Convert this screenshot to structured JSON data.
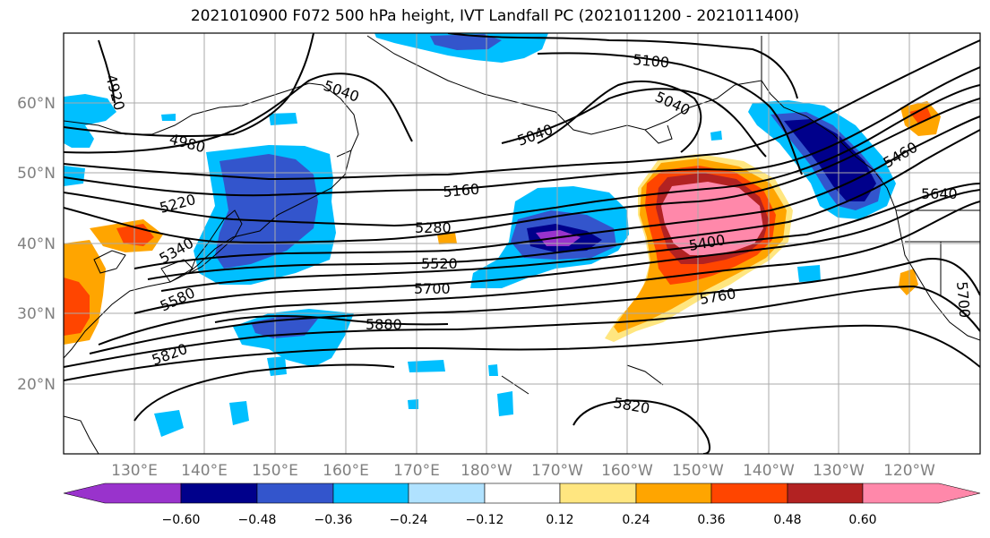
{
  "title": "2021010900 F072 500 hPa height, IVT Landfall PC (2021011200 - 2021011400)",
  "map": {
    "lon_range": [
      120,
      250
    ],
    "lat_range": [
      10,
      70
    ],
    "lon_ticks": [
      "130°E",
      "140°E",
      "150°E",
      "160°E",
      "170°E",
      "180°W",
      "170°W",
      "160°W",
      "150°W",
      "140°W",
      "130°W",
      "120°W"
    ],
    "lat_ticks": [
      "60°N",
      "50°N",
      "40°N",
      "30°N",
      "20°N"
    ],
    "gridlines": true
  },
  "height_contours": {
    "field": "500 hPa height",
    "labels": [
      "4920",
      "4980",
      "5040",
      "5040",
      "5100",
      "5040",
      "5160",
      "5220",
      "5280",
      "5340",
      "5400",
      "5460",
      "5520",
      "5580",
      "5640",
      "5700",
      "5700",
      "5760",
      "5820",
      "5820",
      "5880"
    ]
  },
  "ivt_pc_fill": {
    "colors": {
      "lt_-0.60": "#9933cc",
      "-0.60_-0.48": "#00008b",
      "-0.48_-0.36": "#3355cc",
      "-0.36_-0.24": "#00bfff",
      "-0.24_-0.12": "#b0e2ff",
      "-0.12_0.12": "#ffffff",
      "0.12_0.24": "#ffe680",
      "0.24_0.36": "#ffa500",
      "0.36_0.48": "#ff4500",
      "0.48_0.60": "#b22222",
      "gt_0.60": "#ff88aa"
    }
  },
  "colorbar": {
    "ticks": [
      "−0.60",
      "−0.48",
      "−0.36",
      "−0.24",
      "−0.12",
      "0.12",
      "0.24",
      "0.36",
      "0.48",
      "0.60"
    ],
    "colors": [
      "#9933cc",
      "#00008b",
      "#3355cc",
      "#00bfff",
      "#b0e2ff",
      "#ffffff",
      "#ffe680",
      "#ffa500",
      "#ff4500",
      "#b22222",
      "#ff88aa"
    ]
  }
}
